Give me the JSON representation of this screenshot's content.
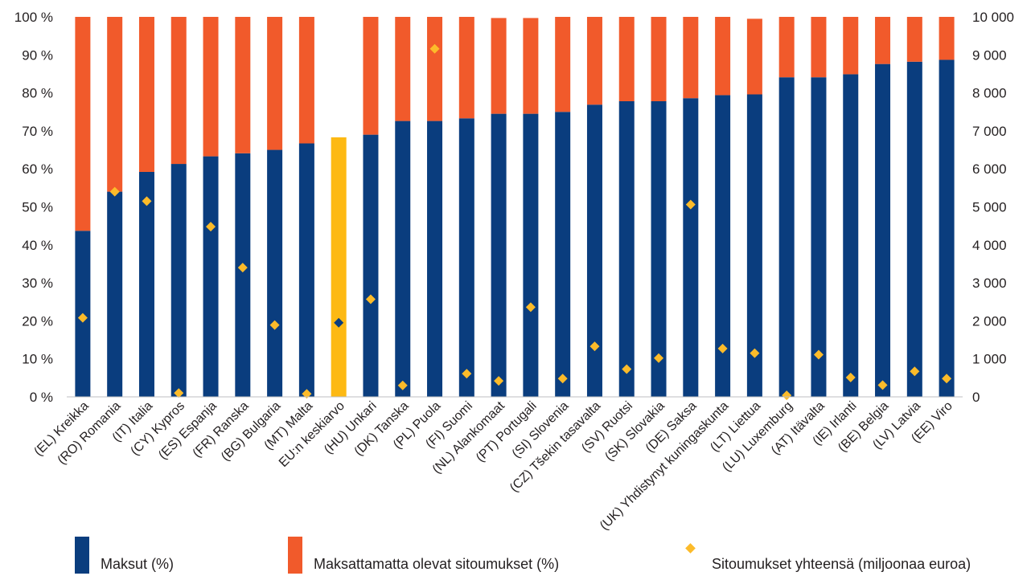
{
  "chart_data": {
    "type": "bar",
    "stacked": true,
    "categories": [
      "(EL) Kreikka",
      "(RO) Romania",
      "(IT) Italia",
      "(CY) Kypros",
      "(ES) Espanja",
      "(FR) Ranska",
      "(BG) Bulgaria",
      "(MT) Malta",
      "EU:n keskiarvo",
      "(HU) Unkari",
      "(DK) Tanska",
      "(PL) Puola",
      "(FI) Suomi",
      "(NL) Alankomaat",
      "(PT) Portugali",
      "(SI) Slovenia",
      "(CZ) Tšekin tasavalta",
      "(SV) Ruotsi",
      "(SK) Slovakia",
      "(DE) Saksa",
      "(UK) Yhdistynyt kuningaskunta",
      "(LT) Liettua",
      "(LU) Luxemburg",
      "(AT) Itävalta",
      "(IE) Irlanti",
      "(BE) Belgia",
      "(LV) Latvia",
      "(EE) Viro"
    ],
    "series": [
      {
        "name": "Maksut (%)",
        "color": "#0a3d7e",
        "highlight_color": "#fdb913",
        "highlight_index": 8,
        "axis": "left",
        "values": [
          43.7,
          54.0,
          59.2,
          61.3,
          63.3,
          64.1,
          65.0,
          66.7,
          68.3,
          69.0,
          72.6,
          72.6,
          73.3,
          74.5,
          74.5,
          75.0,
          76.9,
          77.8,
          77.8,
          78.6,
          79.4,
          79.6,
          84.1,
          84.1,
          84.9,
          87.6,
          88.2,
          88.7
        ]
      },
      {
        "name": "Maksattamatta olevat sitoumukset (%)",
        "color": "#f15a2b",
        "highlight_color": "#fdb913",
        "highlight_index": 8,
        "axis": "left",
        "values": [
          56.3,
          46.0,
          40.8,
          38.7,
          36.7,
          35.9,
          35.0,
          33.3,
          0,
          31.0,
          27.4,
          27.4,
          26.7,
          25.2,
          25.2,
          25.0,
          23.1,
          22.2,
          22.2,
          21.4,
          20.6,
          19.9,
          15.9,
          15.9,
          15.1,
          12.4,
          11.8,
          11.3
        ]
      },
      {
        "name": "Sitoumukset yhteensä (miljoonaa euroa)",
        "type": "scatter",
        "marker": "diamond",
        "color": "#fcbb2a",
        "highlight_color": "#0a3d7e",
        "highlight_index": 8,
        "axis": "right",
        "values": [
          2080,
          5400,
          5150,
          100,
          4480,
          3400,
          1890,
          80,
          1950,
          2570,
          300,
          9160,
          610,
          420,
          2360,
          480,
          1330,
          730,
          1020,
          5060,
          1270,
          1150,
          40,
          1110,
          510,
          310,
          670,
          480
        ]
      }
    ],
    "yaxis_left": {
      "ticks": [
        "0 %",
        "10 %",
        "20 %",
        "30 %",
        "40 %",
        "50 %",
        "60 %",
        "70 %",
        "80 %",
        "90 %",
        "100 %"
      ],
      "ylim": [
        0,
        100
      ]
    },
    "yaxis_right": {
      "ticks": [
        "0",
        "1 000",
        "2 000",
        "3 000",
        "4 000",
        "5 000",
        "6 000",
        "7 000",
        "8 000",
        "9 000",
        "10 000"
      ],
      "ylim": [
        0,
        10000
      ]
    },
    "grid": false,
    "legend_position": "bottom"
  }
}
